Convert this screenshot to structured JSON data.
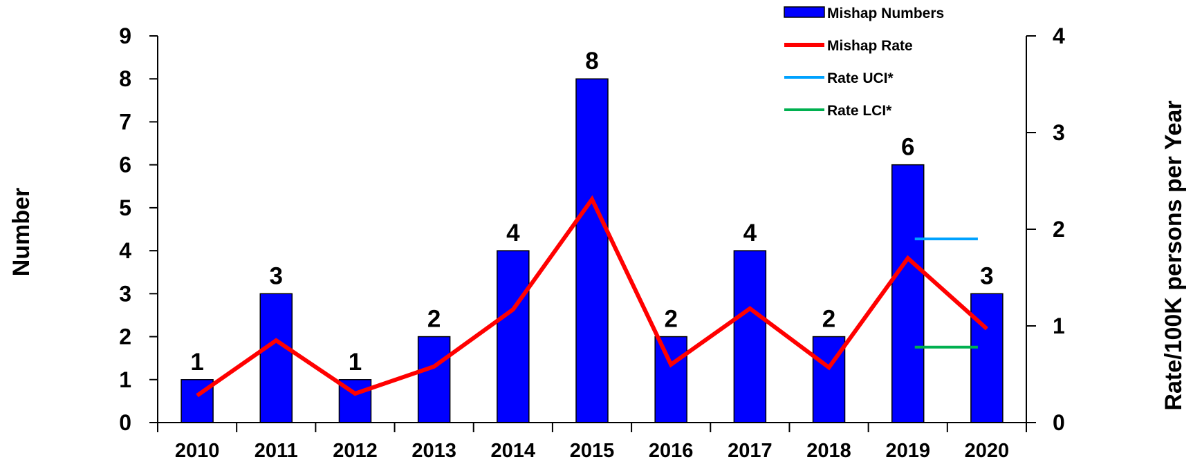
{
  "chart_data": {
    "type": "bar",
    "categories": [
      "2010",
      "2011",
      "2012",
      "2013",
      "2014",
      "2015",
      "2016",
      "2017",
      "2018",
      "2019",
      "2020"
    ],
    "series": [
      {
        "name": "Mishap Numbers",
        "type": "bar",
        "axis": "left",
        "color": "#0000ff",
        "values": [
          1,
          3,
          1,
          2,
          4,
          8,
          2,
          4,
          2,
          6,
          3
        ],
        "data_labels": [
          "1",
          "3",
          "1",
          "2",
          "4",
          "8",
          "2",
          "4",
          "2",
          "6",
          "3"
        ]
      },
      {
        "name": "Mishap Rate",
        "type": "line",
        "axis": "right",
        "color": "#ff0000",
        "values": [
          0.28,
          0.85,
          0.3,
          0.58,
          1.17,
          2.31,
          0.6,
          1.18,
          0.57,
          1.7,
          0.97
        ]
      },
      {
        "name": "Rate UCI*",
        "type": "segment",
        "axis": "right",
        "color": "#00a2ff",
        "x_range": [
          "2019",
          "2020"
        ],
        "value": 1.9
      },
      {
        "name": "Rate LCI*",
        "type": "segment",
        "axis": "right",
        "color": "#00b050",
        "x_range": [
          "2019",
          "2020"
        ],
        "value": 0.78
      }
    ],
    "y_left": {
      "label": "Number",
      "min": 0,
      "max": 9,
      "ticks": [
        "0",
        "1",
        "2",
        "3",
        "4",
        "5",
        "6",
        "7",
        "8",
        "9"
      ]
    },
    "y_right": {
      "label": "Rate/100K persons per Year",
      "min": 0,
      "max": 4,
      "ticks": [
        "0",
        "1",
        "2",
        "3",
        "4"
      ]
    },
    "xlabel": "",
    "grid": false,
    "legend_position": "top-right"
  }
}
